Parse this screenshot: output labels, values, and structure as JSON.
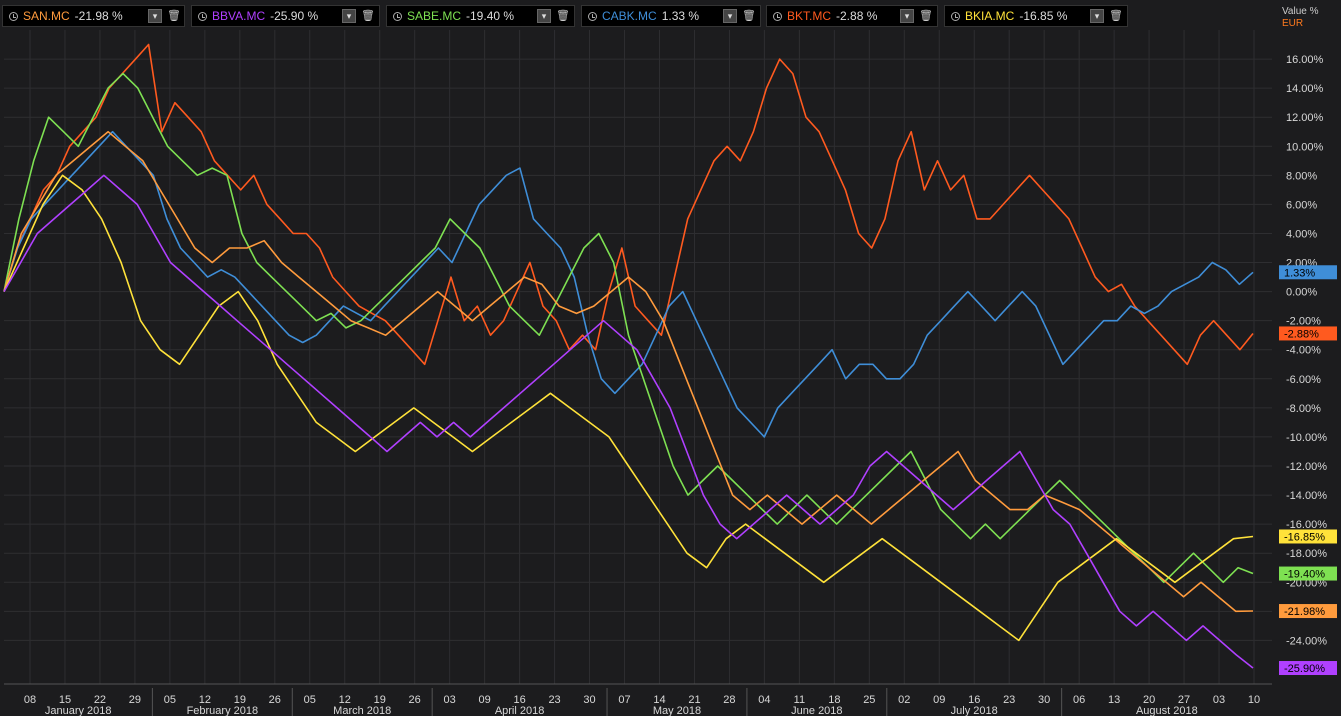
{
  "tabs": [
    {
      "symbol": "SAN.MC",
      "change": "-21.98 %",
      "color": "#ff9b3d"
    },
    {
      "symbol": "BBVA.MC",
      "change": "-25.90 %",
      "color": "#b040ff"
    },
    {
      "symbol": "SABE.MC",
      "change": "-19.40 %",
      "color": "#7ee052"
    },
    {
      "symbol": "CABK.MC",
      "change": "1.33 %",
      "color": "#3f8ed8"
    },
    {
      "symbol": "BKT.MC",
      "change": "-2.88 %",
      "color": "#ff5a1f"
    },
    {
      "symbol": "BKIA.MC",
      "change": "-16.85 %",
      "color": "#ffe23a"
    }
  ],
  "icons": {
    "clock": "clock-icon",
    "dropdown": "chevron-down-icon",
    "delete": "trash-icon"
  },
  "axis": {
    "unit_label": "Value %",
    "currency_label": "EUR"
  },
  "chart_data": {
    "type": "line",
    "x_tick_labels": [
      "08",
      "15",
      "22",
      "29",
      "05",
      "12",
      "19",
      "26",
      "05",
      "12",
      "19",
      "26",
      "03",
      "09",
      "16",
      "23",
      "30",
      "07",
      "14",
      "21",
      "28",
      "04",
      "11",
      "18",
      "25",
      "02",
      "09",
      "16",
      "23",
      "30",
      "06",
      "13",
      "20",
      "27",
      "03",
      "10"
    ],
    "months": [
      "January 2018",
      "February 2018",
      "March 2018",
      "April 2018",
      "May 2018",
      "June 2018",
      "July 2018",
      "August 2018"
    ],
    "y_tick_labels": [
      "16.00%",
      "14.00%",
      "12.00%",
      "10.00%",
      "8.00%",
      "6.00%",
      "4.00%",
      "2.00%",
      "0.00%",
      "-2.00%",
      "-4.00%",
      "-6.00%",
      "-8.00%",
      "-10.00%",
      "-12.00%",
      "-14.00%",
      "-16.00%",
      "-18.00%",
      "-20.00%",
      "-22.00%",
      "-24.00%"
    ],
    "ylim": [
      -27,
      18
    ],
    "grid": true,
    "series": [
      {
        "name": "BKT.MC",
        "color": "#ff5a1f",
        "last_label": "-2.88%",
        "values": [
          0,
          3,
          5,
          7,
          8,
          10,
          11,
          12,
          14,
          15,
          16,
          17,
          11,
          13,
          12,
          11,
          9,
          8,
          7,
          8,
          6,
          5,
          4,
          4,
          3,
          1,
          0,
          -1,
          -1.5,
          -2,
          -3,
          -4,
          -5,
          -2,
          1,
          -2,
          -1,
          -3,
          -2,
          0,
          2,
          -1,
          -2,
          -4,
          -3,
          -4,
          0,
          3,
          -1,
          -2,
          -3,
          1,
          5,
          7,
          9,
          10,
          9,
          11,
          14,
          16,
          15,
          12,
          11,
          9,
          7,
          4,
          3,
          5,
          9,
          11,
          7,
          9,
          7,
          8,
          5,
          5,
          6,
          7,
          8,
          7,
          6,
          5,
          3,
          1,
          0,
          0.5,
          -1,
          -2,
          -3,
          -4,
          -5,
          -3,
          -2,
          -3,
          -4,
          -2.88
        ]
      },
      {
        "name": "CABK.MC",
        "color": "#3f8ed8",
        "last_label": "1.33%",
        "values": [
          0,
          3,
          5,
          6,
          7,
          8,
          9,
          10,
          11,
          10,
          9,
          8,
          5,
          3,
          2,
          1,
          1.5,
          1,
          0,
          -1,
          -2,
          -3,
          -3.5,
          -3,
          -2,
          -1,
          -1.5,
          -2,
          -1,
          0,
          1,
          2,
          3,
          2,
          4,
          6,
          7,
          8,
          8.5,
          5,
          4,
          3,
          1,
          -3,
          -6,
          -7,
          -6,
          -5,
          -3,
          -1,
          0,
          -2,
          -4,
          -6,
          -8,
          -9,
          -10,
          -8,
          -7,
          -6,
          -5,
          -4,
          -6,
          -5,
          -5,
          -6,
          -6,
          -5,
          -3,
          -2,
          -1,
          0,
          -1,
          -2,
          -1,
          0,
          -1,
          -3,
          -5,
          -4,
          -3,
          -2,
          -2,
          -1,
          -1.5,
          -1,
          0,
          0.5,
          1,
          2,
          1.5,
          0.5,
          1.33
        ]
      },
      {
        "name": "SABE.MC",
        "color": "#7ee052",
        "last_label": "-19.40%",
        "values": [
          0,
          5,
          9,
          12,
          11,
          10,
          12,
          14,
          15,
          14,
          12,
          10,
          9,
          8,
          8.5,
          8,
          4,
          2,
          1,
          0,
          -1,
          -2,
          -1.5,
          -2.5,
          -2,
          -1,
          0,
          1,
          2,
          3,
          5,
          4,
          3,
          1,
          -1,
          -2,
          -3,
          -1,
          1,
          3,
          4,
          2,
          -3,
          -6,
          -9,
          -12,
          -14,
          -13,
          -12,
          -13,
          -14,
          -15,
          -16,
          -15,
          -14,
          -15,
          -16,
          -15,
          -14,
          -13,
          -12,
          -11,
          -13,
          -15,
          -16,
          -17,
          -16,
          -17,
          -16,
          -15,
          -14,
          -13,
          -14,
          -15,
          -16,
          -17,
          -18,
          -19,
          -20,
          -19,
          -18,
          -19,
          -20,
          -19,
          -19.4
        ]
      },
      {
        "name": "SAN.MC",
        "color": "#ff9b3d",
        "last_label": "-21.98%",
        "values": [
          0,
          4,
          6,
          8,
          9,
          10,
          11,
          10,
          9,
          7,
          5,
          3,
          2,
          3,
          3,
          3.5,
          2,
          1,
          0,
          -1,
          -2,
          -2.5,
          -3,
          -2,
          -1,
          0,
          -1,
          -2,
          -1,
          0,
          1,
          0.5,
          -1,
          -1.5,
          -1,
          0,
          1,
          0,
          -2,
          -5,
          -8,
          -11,
          -14,
          -15,
          -14,
          -15,
          -16,
          -15,
          -14,
          -15,
          -16,
          -15,
          -14,
          -13,
          -12,
          -11,
          -13,
          -14,
          -15,
          -15,
          -14,
          -14.5,
          -15,
          -16,
          -17,
          -18,
          -19,
          -20,
          -21,
          -20,
          -21,
          -22,
          -21.98
        ]
      },
      {
        "name": "BKIA.MC",
        "color": "#ffe23a",
        "last_label": "-16.85%",
        "values": [
          0,
          3,
          6,
          8,
          7,
          5,
          2,
          -2,
          -4,
          -5,
          -3,
          -1,
          0,
          -2,
          -5,
          -7,
          -9,
          -10,
          -11,
          -10,
          -9,
          -8,
          -9,
          -10,
          -11,
          -10,
          -9,
          -8,
          -7,
          -8,
          -9,
          -10,
          -12,
          -14,
          -16,
          -18,
          -19,
          -17,
          -16,
          -17,
          -18,
          -19,
          -20,
          -19,
          -18,
          -17,
          -18,
          -19,
          -20,
          -21,
          -22,
          -23,
          -24,
          -22,
          -20,
          -19,
          -18,
          -17,
          -18,
          -19,
          -20,
          -19,
          -18,
          -17,
          -16.85
        ]
      },
      {
        "name": "BBVA.MC",
        "color": "#b040ff",
        "last_label": "-25.90%",
        "values": [
          0,
          2,
          4,
          5,
          6,
          7,
          8,
          7,
          6,
          4,
          2,
          1,
          0,
          -1,
          -2,
          -3,
          -4,
          -5,
          -6,
          -7,
          -8,
          -9,
          -10,
          -11,
          -10,
          -9,
          -10,
          -9,
          -10,
          -9,
          -8,
          -7,
          -6,
          -5,
          -4,
          -3,
          -2,
          -3,
          -4,
          -6,
          -8,
          -11,
          -14,
          -16,
          -17,
          -16,
          -15,
          -14,
          -15,
          -16,
          -15,
          -14,
          -12,
          -11,
          -12,
          -13,
          -14,
          -15,
          -14,
          -13,
          -12,
          -11,
          -13,
          -15,
          -16,
          -18,
          -20,
          -22,
          -23,
          -22,
          -23,
          -24,
          -23,
          -24,
          -25,
          -25.9
        ]
      }
    ]
  }
}
